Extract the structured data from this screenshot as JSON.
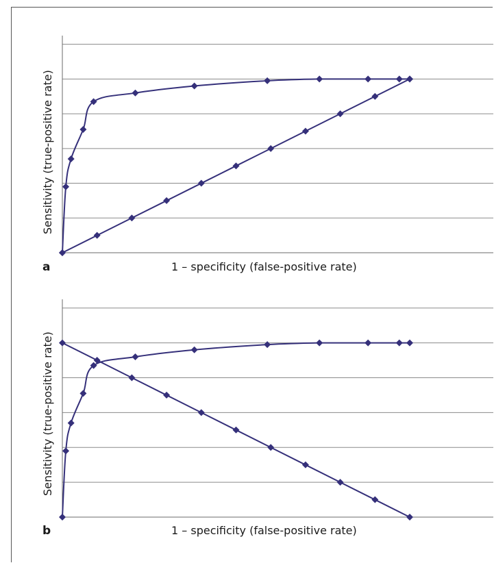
{
  "chart_data": [
    {
      "type": "line",
      "panel_label": "a",
      "xlabel": "1 – specificity (false-positive rate)",
      "ylabel": "Sensitivity (true-positive rate)",
      "xlim": [
        0,
        1.25
      ],
      "ylim": [
        0,
        1.25
      ],
      "grid": true,
      "tick_labels": false,
      "marker": "diamond",
      "color": "#35307a",
      "series": [
        {
          "x": [
            0,
            0.01,
            0.025,
            0.06,
            0.09,
            0.21,
            0.38,
            0.59,
            0.74,
            0.88,
            0.97,
            1.0
          ],
          "values": [
            0,
            0.38,
            0.54,
            0.71,
            0.87,
            0.92,
            0.96,
            0.99,
            1.0,
            1.0,
            1.0,
            1.0
          ]
        },
        {
          "x": [
            0,
            0.1,
            0.2,
            0.3,
            0.4,
            0.5,
            0.6,
            0.7,
            0.8,
            0.9,
            1.0
          ],
          "values": [
            0,
            0.1,
            0.2,
            0.3,
            0.4,
            0.5,
            0.6,
            0.7,
            0.8,
            0.9,
            1.0
          ]
        }
      ]
    },
    {
      "type": "line",
      "panel_label": "b",
      "xlabel": "1 – specificity (false-positive rate)",
      "ylabel": "Sensitivity (true-positive rate)",
      "xlim": [
        0,
        1.25
      ],
      "ylim": [
        0,
        1.25
      ],
      "grid": true,
      "tick_labels": false,
      "marker": "diamond",
      "color": "#35307a",
      "series": [
        {
          "x": [
            0,
            0.01,
            0.025,
            0.06,
            0.09,
            0.21,
            0.38,
            0.59,
            0.74,
            0.88,
            0.97,
            1.0
          ],
          "values": [
            0,
            0.38,
            0.54,
            0.71,
            0.87,
            0.92,
            0.96,
            0.99,
            1.0,
            1.0,
            1.0,
            1.0
          ]
        },
        {
          "x": [
            0,
            0.1,
            0.2,
            0.3,
            0.4,
            0.5,
            0.6,
            0.7,
            0.8,
            0.9,
            1.0
          ],
          "values": [
            1.0,
            0.9,
            0.8,
            0.7,
            0.6,
            0.5,
            0.4,
            0.3,
            0.2,
            0.1,
            0
          ]
        }
      ]
    }
  ]
}
